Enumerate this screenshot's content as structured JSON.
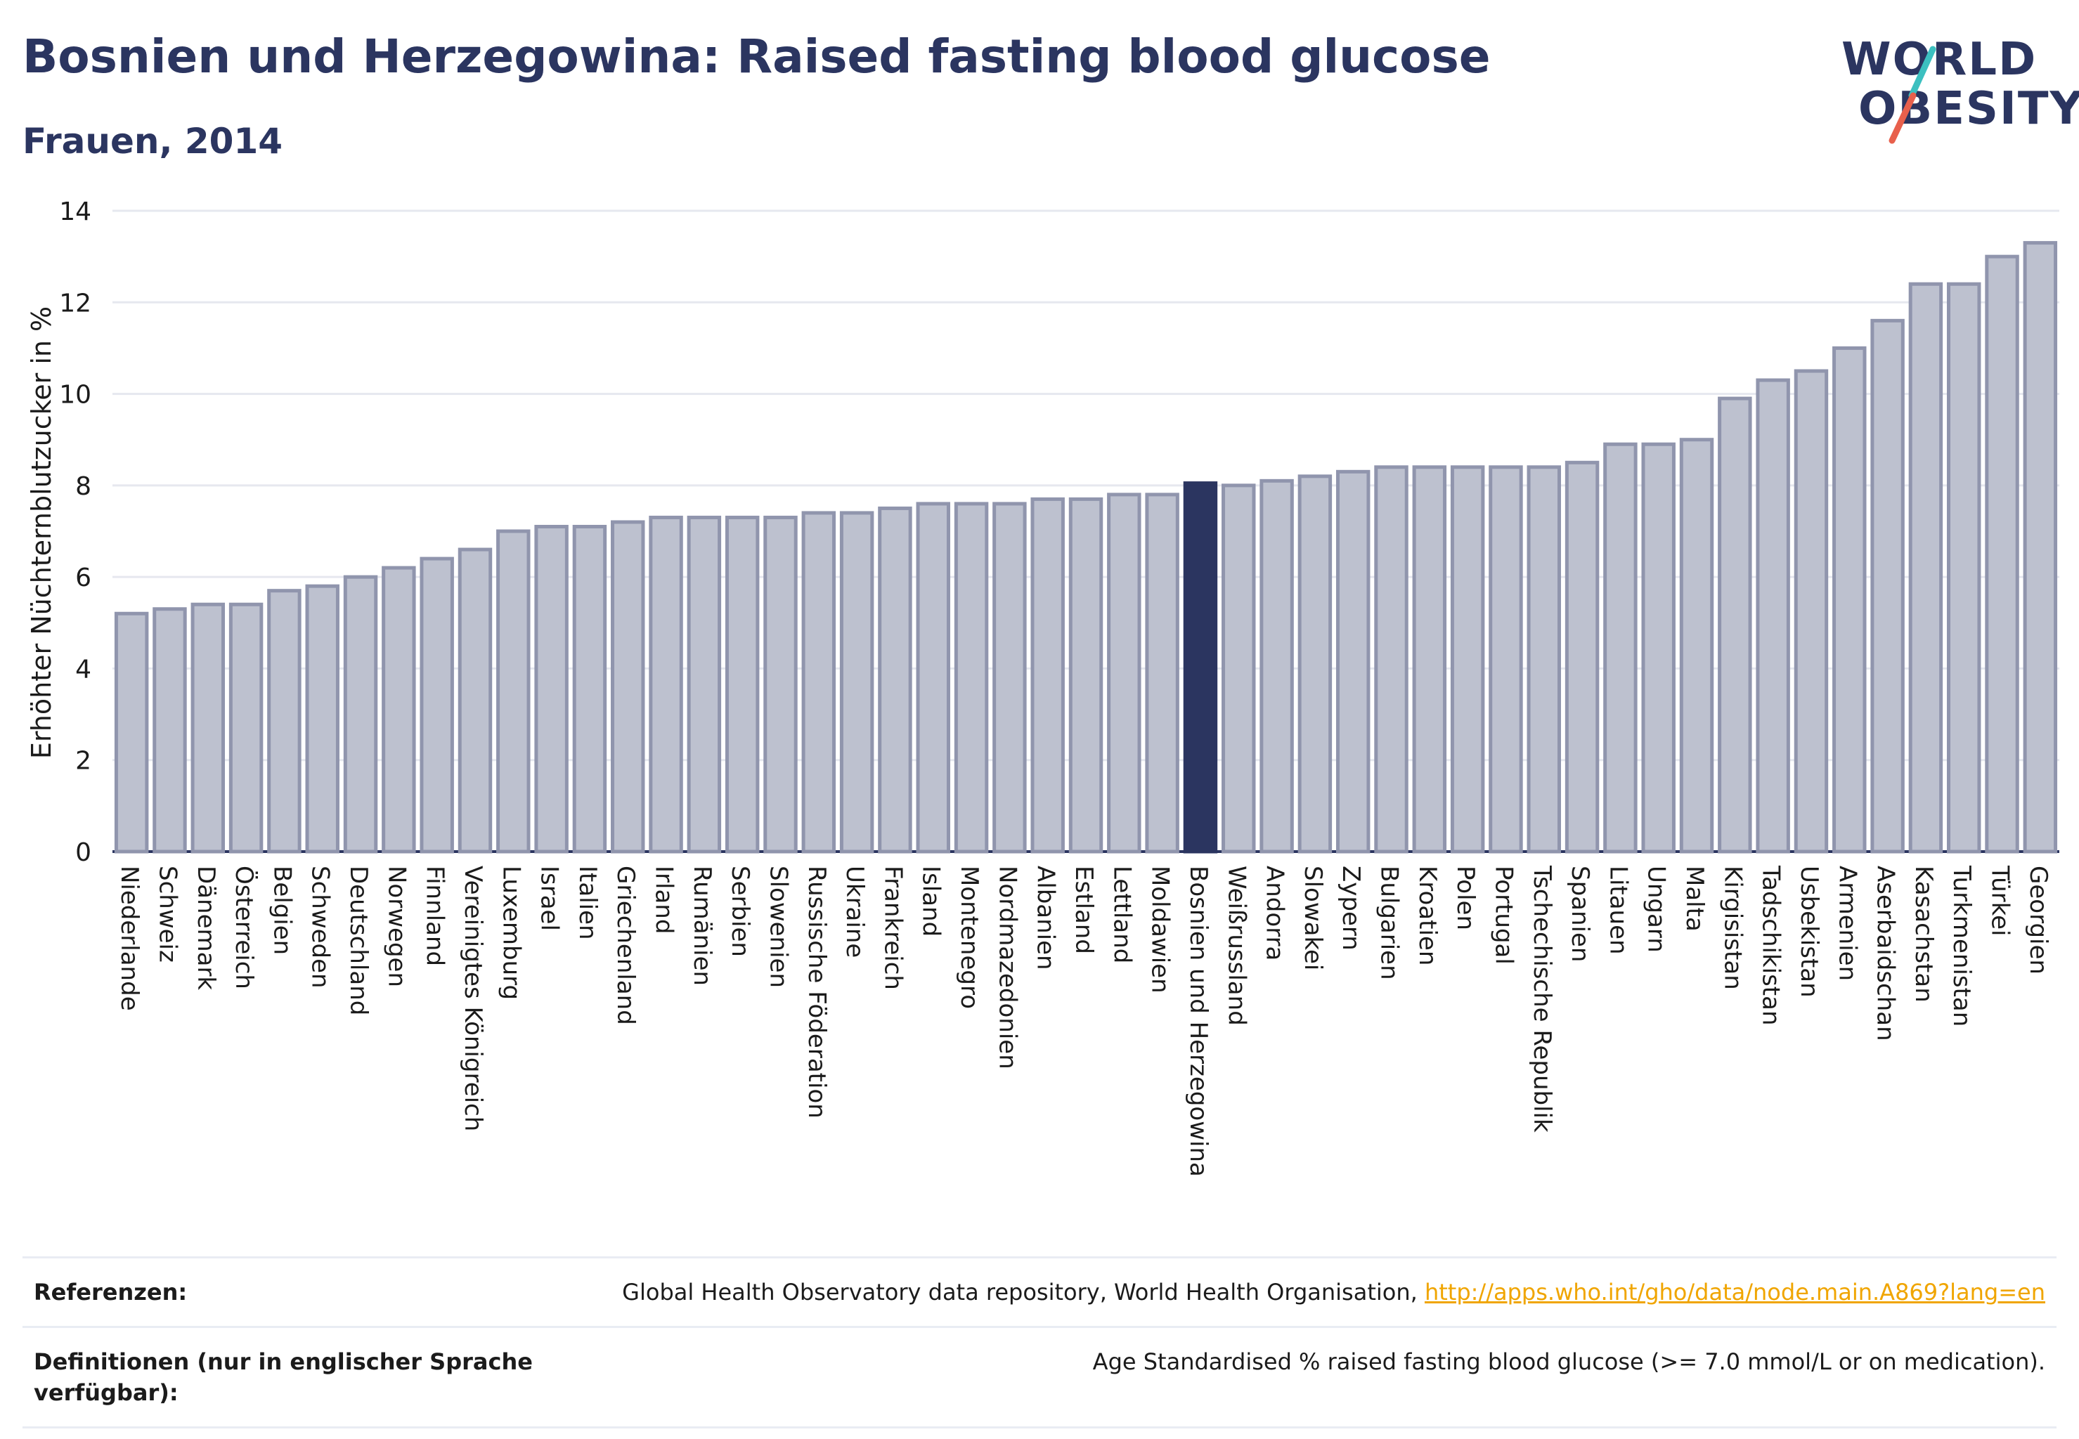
{
  "title": "Bosnien und Herzegowina: Raised fasting blood glucose",
  "subtitle": "Frauen, 2014",
  "logo": {
    "line1": "WORLD",
    "line2": "OBESITY"
  },
  "colors": {
    "bar": "#bdc1cf",
    "bar_border": "#9095ad",
    "highlight": "#2b3560",
    "accent_teal": "#3cc0c0",
    "accent_red": "#e8604c",
    "link": "#f0a500"
  },
  "chart_data": {
    "type": "bar",
    "ylabel": "Erhöhter Nüchternblutzucker in %",
    "ylim": [
      0,
      14
    ],
    "yticks": [
      0,
      2,
      4,
      6,
      8,
      10,
      12,
      14
    ],
    "grid": true,
    "highlight": "Bosnien und Herzegowina",
    "categories": [
      "Niederlande",
      "Schweiz",
      "Dänemark",
      "Österreich",
      "Belgien",
      "Schweden",
      "Deutschland",
      "Norwegen",
      "Finnland",
      "Vereinigtes Königreich",
      "Luxemburg",
      "Israel",
      "Italien",
      "Griechenland",
      "Irland",
      "Rumänien",
      "Serbien",
      "Slowenien",
      "Russische Föderation",
      "Ukraine",
      "Frankreich",
      "Island",
      "Montenegro",
      "Nordmazedonien",
      "Albanien",
      "Estland",
      "Lettland",
      "Moldawien",
      "Bosnien und Herzegowina",
      "Weißrussland",
      "Andorra",
      "Slowakei",
      "Zypern",
      "Bulgarien",
      "Kroatien",
      "Polen",
      "Portugal",
      "Tschechische Republik",
      "Spanien",
      "Litauen",
      "Ungarn",
      "Malta",
      "Kirgisistan",
      "Tadschikistan",
      "Usbekistan",
      "Armenien",
      "Aserbaidschan",
      "Kasachstan",
      "Turkmenistan",
      "Türkei",
      "Georgien"
    ],
    "values": [
      5.2,
      5.3,
      5.4,
      5.4,
      5.7,
      5.8,
      6.0,
      6.2,
      6.4,
      6.6,
      7.0,
      7.1,
      7.1,
      7.2,
      7.3,
      7.3,
      7.3,
      7.3,
      7.4,
      7.4,
      7.5,
      7.6,
      7.6,
      7.6,
      7.7,
      7.7,
      7.8,
      7.8,
      8.05,
      8.0,
      8.1,
      8.2,
      8.3,
      8.4,
      8.4,
      8.4,
      8.4,
      8.4,
      8.5,
      8.9,
      8.9,
      9.0,
      9.9,
      10.3,
      10.5,
      11.0,
      11.6,
      12.4,
      12.4,
      13.0,
      13.3
    ]
  },
  "references": [
    {
      "label": "Referenzen:",
      "text": "Global Health Observatory data repository, World Health Organisation, ",
      "link": "http://apps.who.int/gho/data/node.main.A869?lang=en"
    },
    {
      "label": "Definitionen (nur in englischer Sprache verfügbar):",
      "text": "Age Standardised % raised fasting blood glucose (>= 7.0 mmol/L or on medication).",
      "link": ""
    }
  ]
}
